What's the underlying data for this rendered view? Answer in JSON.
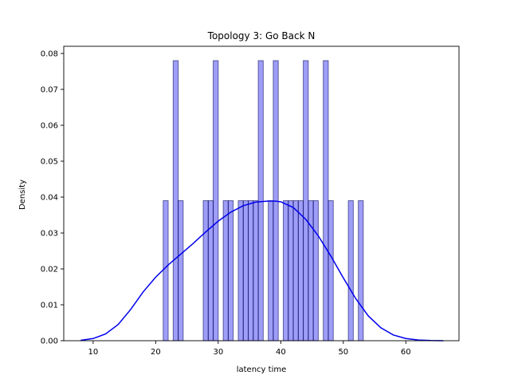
{
  "chart_data": {
    "type": "bar",
    "title": "Topology 3: Go Back N",
    "xlabel": "latency time",
    "ylabel": "Density",
    "xlim": [
      5.3,
      68.5
    ],
    "ylim": [
      0,
      0.082
    ],
    "xticks": [
      10,
      20,
      30,
      40,
      50,
      60
    ],
    "yticks": [
      0.0,
      0.01,
      0.02,
      0.03,
      0.04,
      0.05,
      0.06,
      0.07,
      0.08
    ],
    "ytick_labels": [
      "0.00",
      "0.01",
      "0.02",
      "0.03",
      "0.04",
      "0.05",
      "0.06",
      "0.07",
      "0.08"
    ],
    "histogram": {
      "bin_width": 0.8,
      "bins": [
        {
          "x": 21.2,
          "density": 0.039
        },
        {
          "x": 22.8,
          "density": 0.078
        },
        {
          "x": 23.6,
          "density": 0.039
        },
        {
          "x": 27.6,
          "density": 0.039
        },
        {
          "x": 28.4,
          "density": 0.039
        },
        {
          "x": 29.2,
          "density": 0.078
        },
        {
          "x": 30.8,
          "density": 0.039
        },
        {
          "x": 31.6,
          "density": 0.039
        },
        {
          "x": 33.2,
          "density": 0.039
        },
        {
          "x": 34.0,
          "density": 0.039
        },
        {
          "x": 34.8,
          "density": 0.039
        },
        {
          "x": 35.6,
          "density": 0.039
        },
        {
          "x": 36.4,
          "density": 0.078
        },
        {
          "x": 38.0,
          "density": 0.039
        },
        {
          "x": 38.8,
          "density": 0.078
        },
        {
          "x": 40.4,
          "density": 0.039
        },
        {
          "x": 41.2,
          "density": 0.039
        },
        {
          "x": 42.0,
          "density": 0.039
        },
        {
          "x": 42.8,
          "density": 0.039
        },
        {
          "x": 43.6,
          "density": 0.078
        },
        {
          "x": 44.4,
          "density": 0.039
        },
        {
          "x": 45.2,
          "density": 0.039
        },
        {
          "x": 46.8,
          "density": 0.078
        },
        {
          "x": 47.6,
          "density": 0.039
        },
        {
          "x": 50.8,
          "density": 0.039
        },
        {
          "x": 52.4,
          "density": 0.039
        }
      ]
    },
    "kde": {
      "x": [
        8,
        10,
        12,
        14,
        16,
        18,
        20,
        22,
        24,
        26,
        28,
        30,
        32,
        34,
        36,
        38,
        39,
        40,
        42,
        44,
        46,
        48,
        50,
        52,
        54,
        56,
        58,
        60,
        62,
        64,
        66
      ],
      "y": [
        0.0001,
        0.0006,
        0.0019,
        0.0045,
        0.0087,
        0.0136,
        0.0177,
        0.0211,
        0.0241,
        0.0271,
        0.0303,
        0.0333,
        0.0358,
        0.0376,
        0.0386,
        0.0389,
        0.0389,
        0.0387,
        0.0371,
        0.0338,
        0.0292,
        0.0236,
        0.0175,
        0.0117,
        0.0069,
        0.0036,
        0.0016,
        0.0006,
        0.0002,
        5e-05,
        0.0
      ]
    },
    "colors": {
      "kde_line": "#0000ee",
      "bar_fill": "#9a9af0",
      "bar_edge": "#555580"
    },
    "grid": false,
    "legend": "none"
  }
}
